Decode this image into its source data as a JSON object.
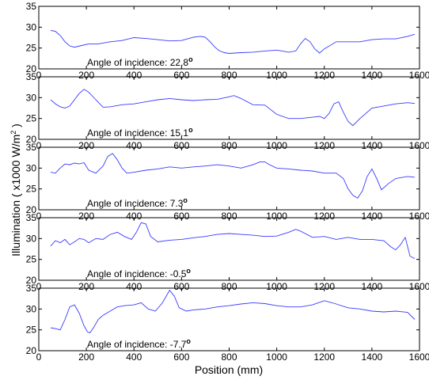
{
  "chart_data": {
    "type": "line",
    "xlabel": "Position (mm)",
    "ylabel_main": "Illumination",
    "ylabel_unit": "( x1000 W/m",
    "ylabel_unit_sup": "2",
    "ylabel_unit_close": " )",
    "xlim": [
      0,
      1600
    ],
    "ylim": [
      20,
      35
    ],
    "x_ticks": [
      "0",
      "200",
      "400",
      "600",
      "800",
      "1000",
      "1200",
      "1400",
      "1600"
    ],
    "y_ticks": [
      "20",
      "25",
      "30",
      "35"
    ],
    "series_color": "#3a3aff",
    "panels": [
      {
        "annotation": "Angle of incidence: 22.8",
        "degree_mark": "o",
        "x": [
          50,
          70,
          90,
          110,
          130,
          150,
          180,
          210,
          250,
          300,
          350,
          400,
          450,
          500,
          550,
          600,
          650,
          680,
          700,
          720,
          740,
          760,
          780,
          800,
          850,
          900,
          950,
          1000,
          1050,
          1080,
          1100,
          1120,
          1140,
          1160,
          1180,
          1200,
          1250,
          1300,
          1350,
          1400,
          1450,
          1500,
          1550,
          1580
        ],
        "y": [
          29.2,
          29.0,
          28.0,
          26.5,
          25.5,
          25.2,
          25.6,
          26.0,
          26.0,
          26.5,
          26.8,
          27.5,
          27.3,
          27.0,
          26.7,
          26.8,
          27.6,
          27.8,
          27.6,
          26.5,
          25.2,
          24.3,
          23.9,
          23.7,
          23.9,
          24.0,
          24.3,
          24.5,
          24.0,
          24.3,
          26.0,
          27.3,
          26.5,
          24.8,
          23.8,
          24.8,
          26.5,
          26.5,
          26.5,
          27.0,
          27.2,
          27.2,
          27.8,
          28.3
        ]
      },
      {
        "annotation": "Angle of incidence: 15.1",
        "degree_mark": "o",
        "x": [
          50,
          70,
          90,
          110,
          130,
          150,
          170,
          190,
          210,
          240,
          270,
          300,
          350,
          400,
          450,
          500,
          550,
          600,
          650,
          700,
          750,
          800,
          820,
          850,
          900,
          950,
          1000,
          1050,
          1100,
          1150,
          1180,
          1200,
          1220,
          1240,
          1260,
          1280,
          1300,
          1320,
          1350,
          1400,
          1450,
          1500,
          1550,
          1580
        ],
        "y": [
          29.5,
          28.5,
          27.8,
          27.5,
          28.0,
          29.5,
          31.0,
          32.0,
          31.3,
          29.5,
          27.7,
          27.8,
          28.3,
          28.5,
          29.0,
          29.5,
          29.8,
          29.5,
          29.3,
          29.5,
          29.6,
          30.2,
          30.5,
          29.8,
          28.3,
          28.2,
          26.0,
          25.0,
          25.0,
          25.3,
          25.5,
          25.0,
          26.2,
          28.5,
          29.0,
          26.5,
          24.3,
          23.3,
          25.0,
          27.5,
          28.0,
          28.5,
          28.8,
          28.6
        ]
      },
      {
        "annotation": "Angle of incidence: 7.3",
        "degree_mark": "o",
        "x": [
          50,
          70,
          90,
          110,
          130,
          150,
          170,
          190,
          210,
          240,
          270,
          290,
          310,
          330,
          350,
          370,
          400,
          450,
          500,
          550,
          600,
          650,
          700,
          750,
          800,
          850,
          900,
          930,
          950,
          970,
          1000,
          1050,
          1100,
          1150,
          1200,
          1250,
          1280,
          1300,
          1320,
          1340,
          1360,
          1380,
          1400,
          1420,
          1440,
          1470,
          1500,
          1550,
          1580
        ],
        "y": [
          29.0,
          28.8,
          30.0,
          31.0,
          30.8,
          31.2,
          31.0,
          31.3,
          29.5,
          28.8,
          30.5,
          32.8,
          33.5,
          32.0,
          30.0,
          28.8,
          29.0,
          29.5,
          29.8,
          30.3,
          30.0,
          30.3,
          30.5,
          30.8,
          30.5,
          30.0,
          30.8,
          31.5,
          31.5,
          30.8,
          30.0,
          29.8,
          29.5,
          29.3,
          28.8,
          28.8,
          27.5,
          25.0,
          23.5,
          22.8,
          24.5,
          28.0,
          29.8,
          27.5,
          24.8,
          26.3,
          27.5,
          28.0,
          27.8
        ]
      },
      {
        "annotation": "Angle of incidence: -0.5",
        "degree_mark": "o",
        "x": [
          50,
          70,
          90,
          110,
          130,
          150,
          170,
          190,
          210,
          240,
          270,
          300,
          330,
          360,
          390,
          410,
          430,
          450,
          470,
          500,
          550,
          600,
          650,
          700,
          750,
          800,
          850,
          900,
          950,
          1000,
          1050,
          1080,
          1100,
          1150,
          1200,
          1250,
          1300,
          1350,
          1400,
          1450,
          1480,
          1500,
          1520,
          1540,
          1560,
          1580
        ],
        "y": [
          28.2,
          29.5,
          29.0,
          29.8,
          28.5,
          29.2,
          30.0,
          29.8,
          29.0,
          30.0,
          29.8,
          31.0,
          31.5,
          30.5,
          29.8,
          31.5,
          33.8,
          33.5,
          30.5,
          29.2,
          29.6,
          29.8,
          30.2,
          30.5,
          31.0,
          31.2,
          31.0,
          30.8,
          30.5,
          30.6,
          31.5,
          32.2,
          31.8,
          30.3,
          30.5,
          29.8,
          30.3,
          29.8,
          29.8,
          29.5,
          28.0,
          27.3,
          28.5,
          30.3,
          25.8,
          25.2
        ]
      },
      {
        "annotation": "Angle of incidence: -7.7",
        "degree_mark": "o",
        "x": [
          50,
          70,
          90,
          110,
          130,
          150,
          170,
          190,
          205,
          215,
          230,
          250,
          270,
          300,
          330,
          360,
          400,
          430,
          460,
          490,
          520,
          550,
          570,
          590,
          620,
          650,
          700,
          750,
          800,
          850,
          900,
          950,
          1000,
          1050,
          1100,
          1150,
          1200,
          1250,
          1300,
          1350,
          1400,
          1450,
          1500,
          1550,
          1580
        ],
        "y": [
          25.5,
          25.3,
          25.0,
          27.5,
          30.5,
          31.0,
          29.0,
          26.0,
          24.5,
          24.3,
          25.5,
          27.5,
          28.5,
          29.5,
          30.5,
          30.8,
          31.0,
          31.5,
          30.0,
          29.5,
          31.5,
          34.5,
          33.0,
          30.3,
          29.5,
          29.8,
          30.0,
          30.5,
          30.8,
          31.2,
          31.5,
          31.3,
          30.8,
          30.5,
          30.5,
          31.0,
          32.0,
          31.2,
          30.3,
          30.0,
          29.5,
          29.3,
          29.5,
          29.2,
          27.5
        ]
      }
    ]
  }
}
